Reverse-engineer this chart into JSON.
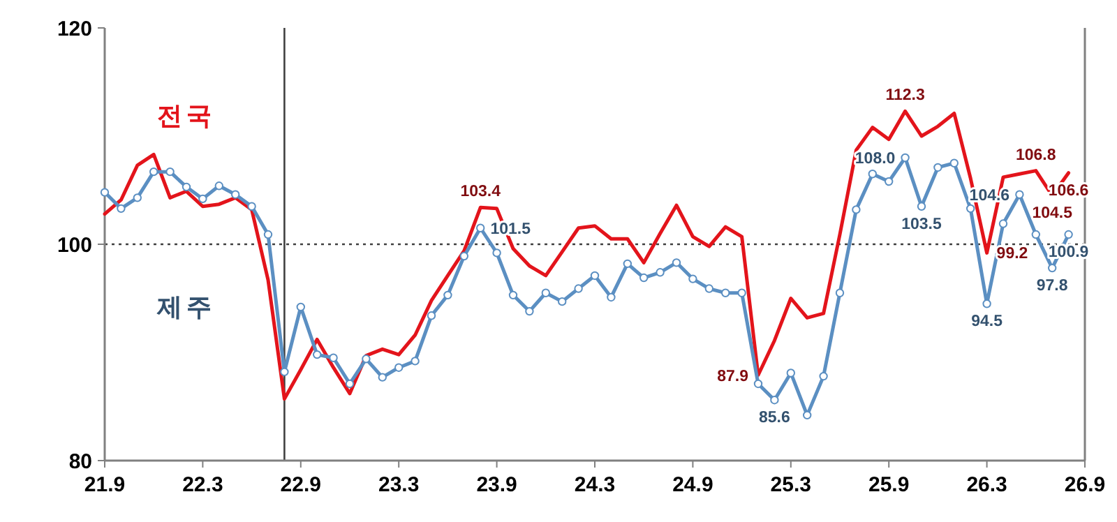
{
  "chart_data": {
    "type": "line",
    "categories": [
      "21.9",
      null,
      null,
      null,
      null,
      null,
      "22.3",
      null,
      null,
      null,
      null,
      null,
      "22.9",
      null,
      null,
      null,
      null,
      null,
      "23.3",
      null,
      null,
      null,
      null,
      null,
      "23.9",
      null,
      null,
      null,
      null,
      null,
      "24.3",
      null,
      null,
      null,
      null,
      null,
      "24.9",
      null,
      null,
      null,
      null,
      null,
      "25.3",
      null,
      null,
      null,
      null,
      null,
      "25.9",
      null,
      null,
      null,
      null,
      null,
      "26.3",
      null,
      null,
      null,
      null,
      null,
      "26.9"
    ],
    "series": [
      {
        "name": "전국",
        "color": "#e3141b",
        "marker": "none",
        "values": [
          102.8,
          104.1,
          107.3,
          108.3,
          104.3,
          104.9,
          103.5,
          103.7,
          104.3,
          103.2,
          96.7,
          85.7,
          88.4,
          91.2,
          88.6,
          86.2,
          89.7,
          90.3,
          89.8,
          91.6,
          94.8,
          97.1,
          99.4,
          103.4,
          103.3,
          99.6,
          98.0,
          97.1,
          99.3,
          101.5,
          101.7,
          100.5,
          100.5,
          98.3,
          101.0,
          103.6,
          100.7,
          99.8,
          101.6,
          100.7,
          87.9,
          91.1,
          95.0,
          93.2,
          93.6,
          100.9,
          108.7,
          110.8,
          109.7,
          112.3,
          110.0,
          110.9,
          112.1,
          106.1,
          99.2,
          106.2,
          106.5,
          106.8,
          104.5,
          106.6,
          null
        ],
        "value_labels": [
          null,
          null,
          null,
          null,
          null,
          null,
          null,
          null,
          null,
          null,
          null,
          null,
          null,
          null,
          null,
          null,
          null,
          null,
          null,
          null,
          null,
          null,
          null,
          "103.4",
          null,
          null,
          null,
          null,
          null,
          null,
          null,
          null,
          null,
          null,
          null,
          null,
          null,
          null,
          null,
          null,
          "87.9",
          null,
          null,
          null,
          null,
          null,
          null,
          null,
          null,
          "112.3",
          null,
          null,
          null,
          null,
          "99.2",
          null,
          null,
          "106.8",
          "104.5",
          "106.6",
          null
        ]
      },
      {
        "name": "제주",
        "color": "#5b8fc2",
        "marker": "circle",
        "values": [
          104.8,
          103.3,
          104.3,
          106.7,
          106.7,
          105.3,
          104.2,
          105.4,
          104.6,
          103.5,
          100.9,
          88.2,
          94.2,
          89.8,
          89.5,
          87.1,
          89.4,
          87.7,
          88.6,
          89.2,
          93.4,
          95.3,
          98.9,
          101.5,
          99.2,
          95.3,
          93.8,
          95.5,
          94.7,
          95.9,
          97.1,
          95.1,
          98.2,
          96.9,
          97.4,
          98.3,
          96.8,
          95.9,
          95.5,
          95.5,
          87.1,
          85.6,
          88.1,
          84.2,
          87.8,
          95.5,
          103.2,
          106.5,
          105.8,
          108.0,
          103.5,
          107.1,
          107.5,
          103.3,
          94.5,
          101.9,
          104.6,
          100.9,
          97.8,
          100.9,
          null
        ],
        "value_labels": [
          null,
          null,
          null,
          null,
          null,
          null,
          null,
          null,
          null,
          null,
          null,
          null,
          null,
          null,
          null,
          null,
          null,
          null,
          null,
          null,
          null,
          null,
          null,
          "101.5",
          null,
          null,
          null,
          null,
          null,
          null,
          null,
          null,
          null,
          null,
          null,
          null,
          null,
          null,
          null,
          null,
          null,
          "85.6",
          null,
          null,
          null,
          null,
          null,
          null,
          null,
          "108.0",
          "103.5",
          null,
          null,
          null,
          "94.5",
          null,
          "104.6",
          null,
          "97.8",
          "100.9",
          null
        ]
      }
    ],
    "ylim": [
      80,
      120
    ],
    "yticks": [
      80,
      100,
      120
    ],
    "grid": false,
    "line_style": "solid",
    "ref_lines": [
      {
        "axis": "y",
        "value": 100,
        "color": "#404040",
        "line_style": "dotted"
      }
    ]
  }
}
